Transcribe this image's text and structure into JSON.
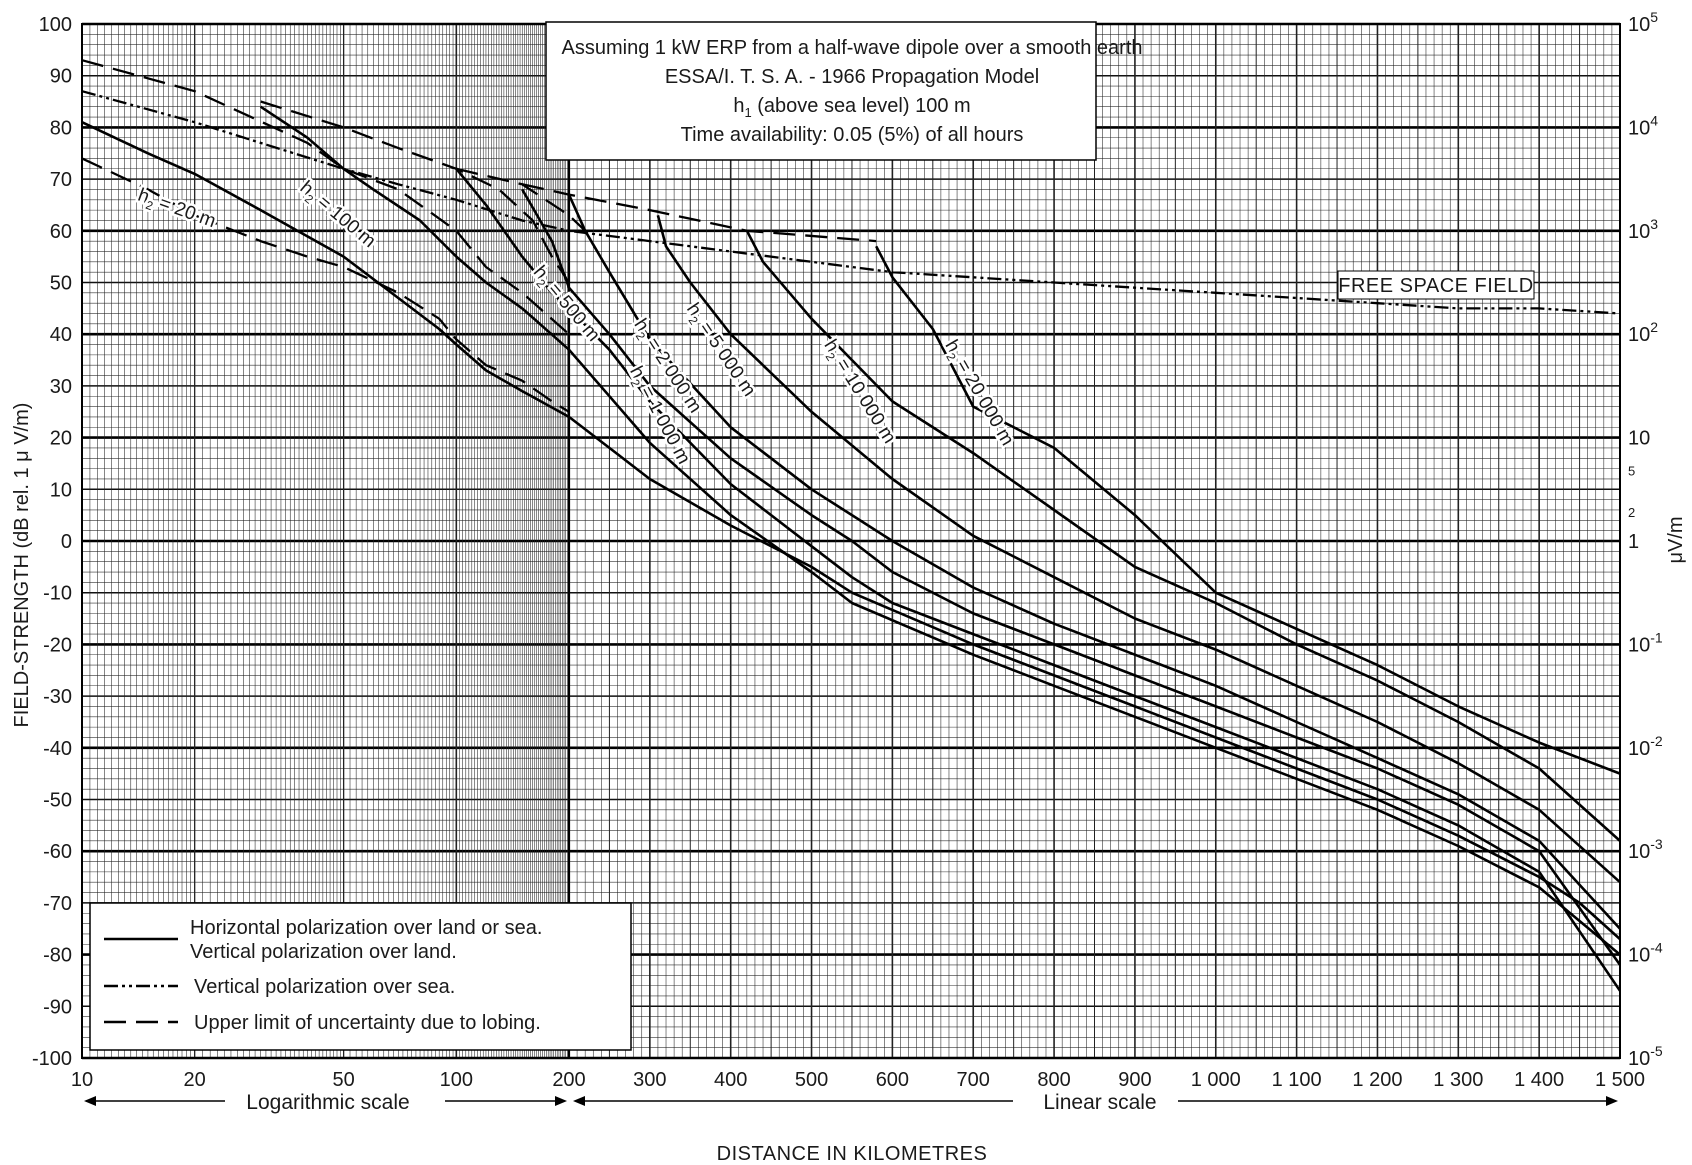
{
  "chart_data": {
    "type": "line",
    "notes": [
      "Assuming 1 kW ERP from a half-wave dipole over a smooth earth",
      "ESSA/I. T. S. A. - 1966 Propagation Model",
      "Time availability: 0.05 (5%) of all hours"
    ],
    "h1_note": {
      "prefix": "h",
      "sub": "1",
      "suffix": " (above sea level) 100 m"
    },
    "ylabel": "FIELD-STRENGTH (dB rel. 1 μ V/m)",
    "ylabel_right": "μV/m",
    "xlabel": "DISTANCE IN KILOMETRES",
    "xscale_log_label": "Logarithmic scale",
    "xscale_lin_label": "Linear scale",
    "free_space_label": "FREE SPACE FIELD",
    "x_axis": {
      "log_range": [
        10,
        200
      ],
      "linear_range": [
        200,
        1500
      ]
    },
    "ylim": [
      -100,
      100
    ],
    "y_ticks": [
      100,
      90,
      80,
      70,
      60,
      50,
      40,
      30,
      20,
      10,
      0,
      -10,
      -20,
      -30,
      -40,
      -50,
      -60,
      -70,
      -80,
      -90,
      -100
    ],
    "x_ticks": [
      {
        "v": 10,
        "label": "10"
      },
      {
        "v": 20,
        "label": "20"
      },
      {
        "v": 50,
        "label": "50"
      },
      {
        "v": 100,
        "label": "100"
      },
      {
        "v": 200,
        "label": "200"
      },
      {
        "v": 300,
        "label": "300"
      },
      {
        "v": 400,
        "label": "400"
      },
      {
        "v": 500,
        "label": "500"
      },
      {
        "v": 600,
        "label": "600"
      },
      {
        "v": 700,
        "label": "700"
      },
      {
        "v": 800,
        "label": "800"
      },
      {
        "v": 900,
        "label": "900"
      },
      {
        "v": 1000,
        "label": "1 000"
      },
      {
        "v": 1100,
        "label": "1 100"
      },
      {
        "v": 1200,
        "label": "1 200"
      },
      {
        "v": 1300,
        "label": "1 300"
      },
      {
        "v": 1400,
        "label": "1 400"
      },
      {
        "v": 1500,
        "label": "1 500"
      }
    ],
    "right_ticks": [
      {
        "v": 100,
        "base": "10",
        "exp": "5"
      },
      {
        "v": 80,
        "base": "10",
        "exp": "4"
      },
      {
        "v": 60,
        "base": "10",
        "exp": "3"
      },
      {
        "v": 40,
        "base": "10",
        "exp": "2"
      },
      {
        "v": 20,
        "base": "10",
        "exp": ""
      },
      {
        "v": 14,
        "base": "5",
        "exp": "",
        "small": true
      },
      {
        "v": 6,
        "base": "2",
        "exp": "",
        "small": true
      },
      {
        "v": 0,
        "base": "1",
        "exp": ""
      },
      {
        "v": -20,
        "base": "10",
        "exp": "-1"
      },
      {
        "v": -40,
        "base": "10",
        "exp": "-2"
      },
      {
        "v": -60,
        "base": "10",
        "exp": "-3"
      },
      {
        "v": -80,
        "base": "10",
        "exp": "-4"
      },
      {
        "v": -100,
        "base": "10",
        "exp": "-5"
      }
    ],
    "legend": [
      {
        "style": "solid",
        "lines": [
          "Horizontal polarization over land or sea.",
          "Vertical polarization over land."
        ]
      },
      {
        "style": "dashdot",
        "lines": [
          "Vertical polarization over sea."
        ]
      },
      {
        "style": "dashed",
        "lines": [
          "Upper limit of uncertainty due to lobing."
        ]
      }
    ],
    "series": [
      {
        "name": "h2 = 20 m",
        "style": "solid",
        "points": [
          [
            10,
            81
          ],
          [
            15,
            75
          ],
          [
            20,
            71
          ],
          [
            30,
            64
          ],
          [
            50,
            55
          ],
          [
            70,
            47
          ],
          [
            90,
            41
          ],
          [
            100,
            38
          ],
          [
            120,
            33
          ],
          [
            150,
            29
          ],
          [
            200,
            24
          ],
          [
            250,
            18
          ],
          [
            300,
            12
          ],
          [
            400,
            3
          ],
          [
            500,
            -5
          ],
          [
            550,
            -10
          ],
          [
            700,
            -20
          ],
          [
            800,
            -26
          ],
          [
            900,
            -32
          ],
          [
            1000,
            -38
          ],
          [
            1100,
            -44
          ],
          [
            1200,
            -50
          ],
          [
            1300,
            -57
          ],
          [
            1400,
            -65
          ],
          [
            1450,
            -70
          ],
          [
            1500,
            -77
          ]
        ]
      },
      {
        "name": "h2 = 100 m",
        "style": "solid",
        "points": [
          [
            30,
            84
          ],
          [
            40,
            78
          ],
          [
            50,
            72
          ],
          [
            60,
            68
          ],
          [
            80,
            62
          ],
          [
            100,
            55
          ],
          [
            120,
            50
          ],
          [
            150,
            45
          ],
          [
            200,
            37
          ],
          [
            250,
            28
          ],
          [
            300,
            19
          ],
          [
            400,
            5
          ],
          [
            500,
            -6
          ],
          [
            550,
            -12
          ],
          [
            700,
            -22
          ],
          [
            800,
            -28
          ],
          [
            900,
            -34
          ],
          [
            1000,
            -40
          ],
          [
            1100,
            -46
          ],
          [
            1200,
            -52
          ],
          [
            1300,
            -59
          ],
          [
            1400,
            -67
          ],
          [
            1500,
            -80
          ]
        ]
      },
      {
        "name": "h2 = 500 m",
        "style": "solid",
        "points": [
          [
            100,
            72
          ],
          [
            120,
            65
          ],
          [
            150,
            55
          ],
          [
            180,
            48
          ],
          [
            200,
            45
          ],
          [
            250,
            37
          ],
          [
            300,
            27
          ],
          [
            400,
            11
          ],
          [
            500,
            -1
          ],
          [
            550,
            -7
          ],
          [
            600,
            -12
          ],
          [
            700,
            -18
          ],
          [
            800,
            -24
          ],
          [
            900,
            -30
          ],
          [
            1000,
            -36
          ],
          [
            1100,
            -42
          ],
          [
            1200,
            -48
          ],
          [
            1300,
            -55
          ],
          [
            1400,
            -64
          ],
          [
            1500,
            -87
          ]
        ]
      },
      {
        "name": "h2 = 1000 m",
        "style": "solid",
        "points": [
          [
            150,
            68
          ],
          [
            180,
            58
          ],
          [
            200,
            49
          ],
          [
            250,
            40
          ],
          [
            300,
            30
          ],
          [
            400,
            16
          ],
          [
            500,
            5
          ],
          [
            550,
            0
          ],
          [
            600,
            -6
          ],
          [
            700,
            -14
          ],
          [
            800,
            -20
          ],
          [
            900,
            -26
          ],
          [
            1000,
            -32
          ],
          [
            1100,
            -38
          ],
          [
            1200,
            -44
          ],
          [
            1300,
            -51
          ],
          [
            1400,
            -60
          ],
          [
            1500,
            -82
          ]
        ]
      },
      {
        "name": "h2 = 2000 m",
        "style": "solid",
        "points": [
          [
            200,
            67
          ],
          [
            220,
            60
          ],
          [
            250,
            52
          ],
          [
            300,
            39
          ],
          [
            400,
            22
          ],
          [
            500,
            10
          ],
          [
            600,
            0
          ],
          [
            700,
            -9
          ],
          [
            800,
            -16
          ],
          [
            900,
            -22
          ],
          [
            1000,
            -28
          ],
          [
            1100,
            -35
          ],
          [
            1200,
            -42
          ],
          [
            1300,
            -49
          ],
          [
            1400,
            -58
          ],
          [
            1500,
            -75
          ]
        ]
      },
      {
        "name": "h2 = 5000 m",
        "style": "solid",
        "points": [
          [
            310,
            63
          ],
          [
            320,
            57
          ],
          [
            350,
            50
          ],
          [
            400,
            40
          ],
          [
            500,
            25
          ],
          [
            600,
            12
          ],
          [
            700,
            1
          ],
          [
            800,
            -7
          ],
          [
            900,
            -15
          ],
          [
            1000,
            -21
          ],
          [
            1100,
            -28
          ],
          [
            1200,
            -35
          ],
          [
            1300,
            -43
          ],
          [
            1400,
            -52
          ],
          [
            1500,
            -66
          ]
        ]
      },
      {
        "name": "h2 = 10000 m",
        "style": "solid",
        "points": [
          [
            420,
            60
          ],
          [
            440,
            54
          ],
          [
            500,
            43
          ],
          [
            550,
            35
          ],
          [
            600,
            27
          ],
          [
            700,
            17
          ],
          [
            800,
            6
          ],
          [
            900,
            -5
          ],
          [
            1000,
            -12
          ],
          [
            1100,
            -20
          ],
          [
            1200,
            -27
          ],
          [
            1300,
            -35
          ],
          [
            1400,
            -44
          ],
          [
            1500,
            -58
          ]
        ]
      },
      {
        "name": "h2 = 20000 m",
        "style": "solid",
        "points": [
          [
            580,
            57
          ],
          [
            600,
            51
          ],
          [
            650,
            41
          ],
          [
            700,
            26
          ],
          [
            800,
            18
          ],
          [
            900,
            5
          ],
          [
            1000,
            -10
          ],
          [
            1100,
            -17
          ],
          [
            1200,
            -24
          ],
          [
            1300,
            -32
          ],
          [
            1400,
            -39
          ],
          [
            1500,
            -45
          ]
        ]
      },
      {
        "name": "free space (sea, vertical)",
        "style": "dashdot",
        "points": [
          [
            10,
            87
          ],
          [
            20,
            81
          ],
          [
            30,
            77
          ],
          [
            50,
            72
          ],
          [
            70,
            69
          ],
          [
            100,
            66
          ],
          [
            150,
            62
          ],
          [
            200,
            60
          ],
          [
            300,
            58
          ],
          [
            400,
            56
          ],
          [
            500,
            54
          ],
          [
            600,
            52
          ],
          [
            700,
            51
          ],
          [
            800,
            50
          ],
          [
            900,
            49
          ],
          [
            1000,
            48
          ],
          [
            1100,
            47
          ],
          [
            1200,
            46
          ],
          [
            1300,
            45
          ],
          [
            1400,
            45
          ],
          [
            1500,
            44
          ]
        ]
      },
      {
        "name": "dashed 20 m",
        "style": "dashed",
        "points": [
          [
            10,
            74
          ],
          [
            15,
            68
          ],
          [
            20,
            63
          ],
          [
            30,
            58
          ],
          [
            40,
            55
          ],
          [
            50,
            53
          ],
          [
            70,
            48
          ],
          [
            90,
            43
          ],
          [
            100,
            39
          ],
          [
            120,
            34
          ],
          [
            150,
            31
          ],
          [
            180,
            27
          ],
          [
            200,
            25
          ]
        ]
      },
      {
        "name": "dashed 100 m",
        "style": "dashed",
        "points": [
          [
            10,
            93
          ],
          [
            20,
            87
          ],
          [
            40,
            77
          ],
          [
            50,
            72
          ],
          [
            70,
            68
          ],
          [
            100,
            60
          ],
          [
            120,
            53
          ],
          [
            150,
            48
          ],
          [
            200,
            40
          ]
        ]
      },
      {
        "name": "dashed 500 m",
        "style": "dashed",
        "points": [
          [
            30,
            85
          ],
          [
            50,
            80
          ],
          [
            70,
            76
          ],
          [
            100,
            72
          ],
          [
            130,
            68
          ],
          [
            160,
            62
          ],
          [
            180,
            55
          ],
          [
            200,
            50
          ]
        ]
      },
      {
        "name": "dashed 1000 m",
        "style": "dashed",
        "points": [
          [
            100,
            72
          ],
          [
            150,
            69
          ],
          [
            200,
            63
          ],
          [
            220,
            60
          ]
        ]
      },
      {
        "name": "dashed 2000 m",
        "style": "dashed",
        "points": [
          [
            150,
            69
          ],
          [
            200,
            67
          ],
          [
            300,
            64
          ],
          [
            420,
            60
          ],
          [
            580,
            58
          ]
        ]
      }
    ],
    "curve_labels": [
      {
        "prefix": "h",
        "sub": "2",
        "suffix": " = 20 m",
        "x": 14,
        "y": 66,
        "angle": 20
      },
      {
        "prefix": "h",
        "sub": "2",
        "suffix": " = 100 m",
        "x": 38,
        "y": 68,
        "angle": 40
      },
      {
        "prefix": "h",
        "sub": "2",
        "suffix": " = 500 m",
        "x": 160,
        "y": 52,
        "angle": 50
      },
      {
        "prefix": "h",
        "sub": "2",
        "suffix": " = 1 000 m",
        "x": 275,
        "y": 33,
        "angle": 62
      },
      {
        "prefix": "h",
        "sub": "2",
        "suffix": " = 2 000 m",
        "x": 280,
        "y": 42,
        "angle": 57
      },
      {
        "prefix": "h",
        "sub": "2",
        "suffix": " = 5 000 m",
        "x": 345,
        "y": 45,
        "angle": 56
      },
      {
        "prefix": "h",
        "sub": "2",
        "suffix": " = 10 000 m",
        "x": 515,
        "y": 38,
        "angle": 58
      },
      {
        "prefix": "h",
        "sub": "2",
        "suffix": " = 20 000 m",
        "x": 665,
        "y": 38,
        "angle": 60
      }
    ]
  }
}
